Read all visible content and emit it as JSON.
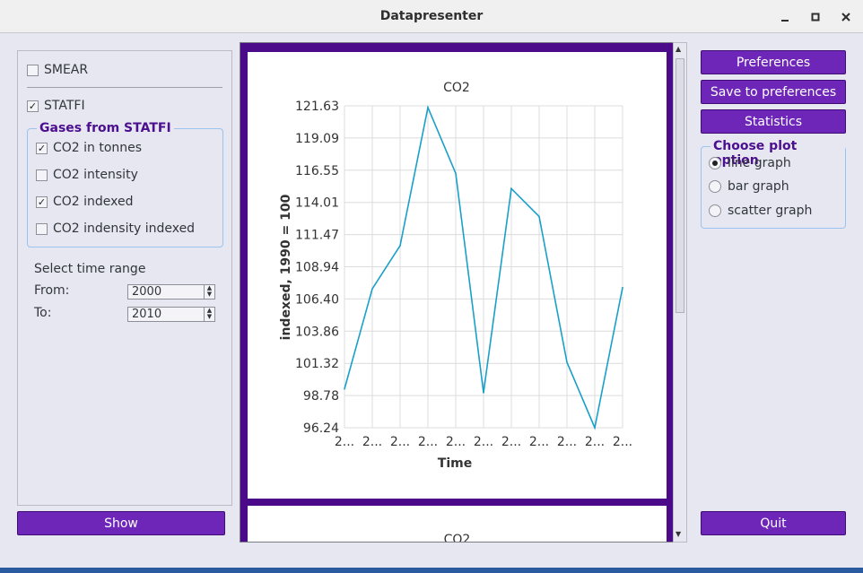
{
  "window": {
    "title": "Datapresenter"
  },
  "left": {
    "smear_label": "SMEAR",
    "statfi_label": "STATFI",
    "group_title": "Gases from STATFI",
    "gases": [
      {
        "label": "CO2 in tonnes",
        "checked": true
      },
      {
        "label": "CO2 intensity",
        "checked": false
      },
      {
        "label": "CO2 indexed",
        "checked": true
      },
      {
        "label": "CO2 indensity indexed",
        "checked": false
      }
    ],
    "time_range_label": "Select time range",
    "from_label": "From:",
    "from_value": "2000",
    "to_label": "To:",
    "to_value": "2010",
    "show_label": "Show"
  },
  "right": {
    "preferences_label": "Preferences",
    "save_label": "Save to preferences",
    "statistics_label": "Statistics",
    "plot_option_title": "Choose plot option",
    "plot_options": [
      {
        "label": "line graph",
        "selected": true
      },
      {
        "label": "bar graph",
        "selected": false
      },
      {
        "label": "scatter graph",
        "selected": false
      }
    ],
    "quit_label": "Quit"
  },
  "chart_data": {
    "type": "line",
    "title": "CO2",
    "xlabel": "Time",
    "ylabel": "indexed, 1990 = 100",
    "x_tick_labels": [
      "2...",
      "2...",
      "2...",
      "2...",
      "2...",
      "2...",
      "2...",
      "2...",
      "2...",
      "2...",
      "2..."
    ],
    "y_ticks": [
      "121.63",
      "119.09",
      "116.55",
      "114.01",
      "111.47",
      "108.94",
      "106.40",
      "103.86",
      "101.32",
      "98.78",
      "96.24"
    ],
    "ylim": [
      96.24,
      121.63
    ],
    "values": [
      99.3,
      107.2,
      110.6,
      121.5,
      116.3,
      99.0,
      115.1,
      112.9,
      101.4,
      96.24,
      107.3
    ],
    "line_color": "#1aa0c8",
    "grid": true
  },
  "second_chart": {
    "title": "CO2"
  }
}
